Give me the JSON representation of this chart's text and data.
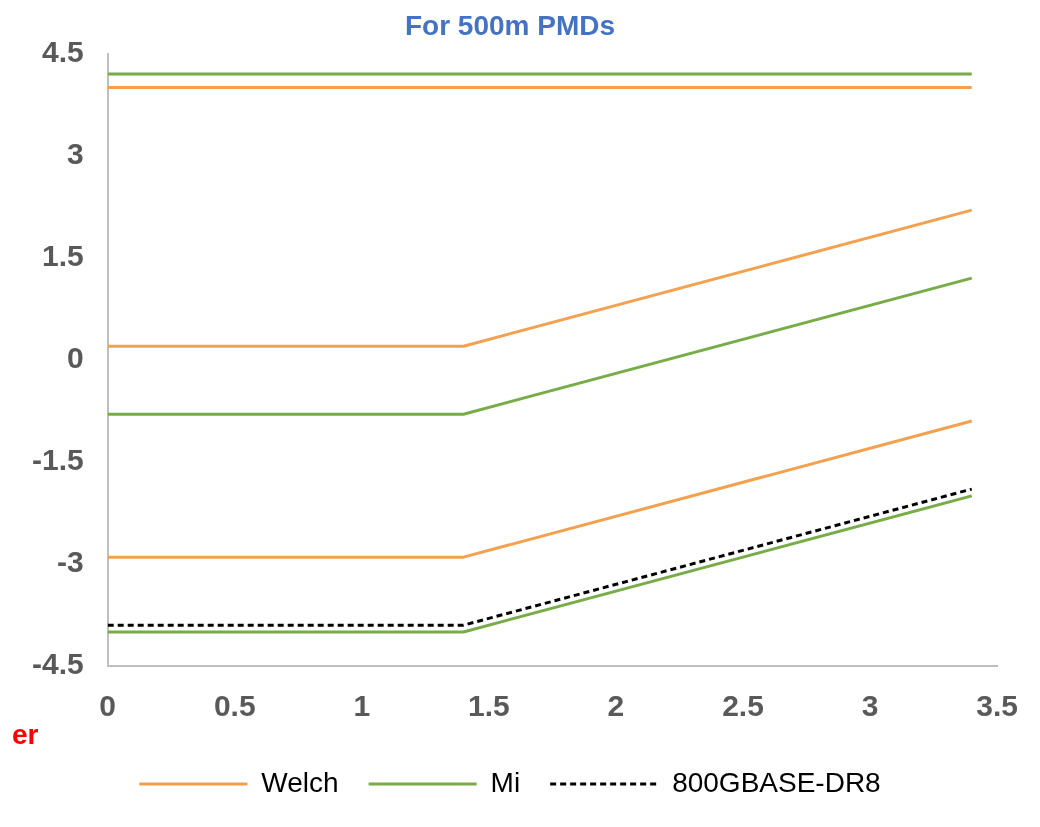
{
  "chart_data": {
    "type": "line",
    "title": "For 500m PMDs",
    "x": [
      0,
      1.4,
      3.4
    ],
    "series": [
      {
        "name": "Welch",
        "color": "#f4a14f",
        "values": [
          4.0,
          4.0,
          4.0
        ]
      },
      {
        "color": "#f4a14f",
        "values": [
          0.2,
          0.2,
          2.2
        ]
      },
      {
        "color": "#f4a14f",
        "values": [
          -2.9,
          -2.9,
          -0.9
        ]
      },
      {
        "name": "Mi",
        "color": "#77ac48",
        "values": [
          4.2,
          4.2,
          4.2
        ]
      },
      {
        "color": "#77ac48",
        "values": [
          -0.8,
          -0.8,
          1.2
        ]
      },
      {
        "color": "#77ac48",
        "values": [
          -4.0,
          -4.0,
          -2.0
        ]
      },
      {
        "name": "800GBASE-DR8",
        "color": "#000000",
        "values": [
          -3.9,
          -3.9,
          -1.9
        ],
        "line_style": "dashed"
      }
    ],
    "xlim": [
      0,
      3.5
    ],
    "xticks": [
      0,
      0.5,
      1,
      1.5,
      2,
      2.5,
      3,
      3.5
    ],
    "ylim": [
      -4.5,
      4.5
    ],
    "yticks": [
      -4.5,
      -3,
      -1.5,
      0,
      1.5,
      3,
      4.5
    ],
    "grid": false,
    "legend": "bottom",
    "marker": "none",
    "line_style": "solid",
    "annotations": [
      "er"
    ]
  }
}
